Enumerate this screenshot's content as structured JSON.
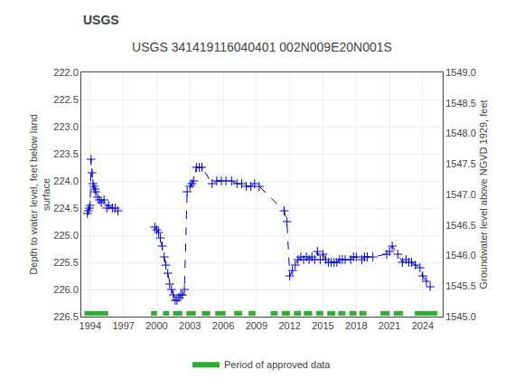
{
  "chart_data": {
    "type": "line",
    "title": "USGS 341419116040401 002N009E20N001S",
    "annotations": [
      {
        "text": "USGS"
      }
    ],
    "ylabel": "Depth to water level, feet below land\nsurface",
    "y2label": "Groundwater level above NGVD 1929, feet",
    "xlim": [
      1993.2,
      2025.8
    ],
    "xticks": [
      1994,
      1997,
      2000,
      2003,
      2006,
      2009,
      2012,
      2015,
      2018,
      2021,
      2024
    ],
    "ylim": [
      226.5,
      222.0
    ],
    "yticks": [
      {
        "value": 222.0,
        "label": "222.0"
      },
      222.5,
      {
        "value": 223.0,
        "label": "223.0"
      },
      223.5,
      {
        "value": 224.0,
        "label": "224.0"
      },
      224.5,
      {
        "value": 225.0,
        "label": "225.0"
      },
      225.5,
      {
        "value": 226.0,
        "label": "226.0"
      },
      226.5
    ],
    "y2lim": [
      1545.0,
      1549.0
    ],
    "y2ticks": [
      {
        "value": 1545.0,
        "label": "1545.0"
      },
      1545.5,
      {
        "value": 1546.0,
        "label": "1546.0"
      },
      1546.5,
      {
        "value": 1547.0,
        "label": "1547.0"
      },
      1547.5,
      {
        "value": 1548.0,
        "label": "1548.0"
      },
      1548.5,
      {
        "value": 1549.0,
        "label": "1549.0"
      }
    ],
    "grid": true,
    "legend": "bottom",
    "x": [
      1993.75,
      1993.83,
      1993.92,
      1994.0,
      1994.08,
      1994.17,
      1994.25,
      1994.33,
      1994.42,
      1994.5,
      1994.67,
      1994.83,
      1995.0,
      1995.25,
      1995.5,
      1995.67,
      1996.0,
      1996.25,
      1996.5,
      null,
      1999.83,
      2000.0,
      2000.17,
      2000.33,
      2000.5,
      2000.67,
      2000.83,
      2001.0,
      2001.17,
      2001.33,
      2001.5,
      2001.67,
      2001.83,
      2002.0,
      2002.17,
      2002.33,
      2002.5,
      2002.75,
      2003.0,
      2003.17,
      2003.33,
      2003.58,
      2003.83,
      2004.08,
      2005.0,
      2005.42,
      2005.83,
      2006.25,
      2006.75,
      2007.25,
      2007.67,
      2008.08,
      2008.5,
      2008.83,
      2009.25,
      2011.5,
      2011.75,
      2012.0,
      2012.25,
      2012.5,
      2012.75,
      2013.0,
      2013.25,
      2013.5,
      2013.75,
      2014.0,
      2014.25,
      2014.5,
      2014.75,
      2015.0,
      2015.25,
      2015.5,
      2015.75,
      2016.0,
      2016.25,
      2016.5,
      2016.75,
      2017.0,
      2017.5,
      2017.75,
      2018.0,
      2018.5,
      2018.75,
      2019.0,
      2019.5,
      2020.75,
      2021.0,
      2021.25,
      2021.75,
      2022.17,
      2022.5,
      2022.75,
      2023.0,
      2023.33,
      2023.75,
      2024.0,
      2024.33,
      2024.67
    ],
    "series": [
      {
        "color": "#0000cc",
        "marker": "+",
        "line_style": "--",
        "values": [
          224.6,
          224.55,
          224.5,
          224.45,
          223.6,
          223.85,
          224.05,
          224.1,
          224.15,
          224.2,
          224.3,
          224.35,
          224.4,
          224.35,
          224.5,
          224.45,
          224.5,
          224.5,
          224.55,
          null,
          224.85,
          224.9,
          224.95,
          225.05,
          225.2,
          225.4,
          225.55,
          225.7,
          225.9,
          226.0,
          226.1,
          226.2,
          226.2,
          226.15,
          226.1,
          226.1,
          226.0,
          224.2,
          224.1,
          224.05,
          224.0,
          223.75,
          223.75,
          223.75,
          224.05,
          224.0,
          224.0,
          224.0,
          224.0,
          224.05,
          224.05,
          224.1,
          224.1,
          224.05,
          224.1,
          224.55,
          224.75,
          225.75,
          225.65,
          225.55,
          225.45,
          225.4,
          225.45,
          225.4,
          225.45,
          225.4,
          225.45,
          225.3,
          225.45,
          225.35,
          225.45,
          225.5,
          225.5,
          225.5,
          225.5,
          225.45,
          225.45,
          225.45,
          225.45,
          225.4,
          225.4,
          225.45,
          225.4,
          225.4,
          225.4,
          225.35,
          225.3,
          225.2,
          225.35,
          225.5,
          225.45,
          225.5,
          225.5,
          225.55,
          225.6,
          225.75,
          225.85,
          225.95
        ]
      },
      {
        "name": "Period of approved data",
        "type": "periods",
        "color": "#33aa33",
        "y_center": 226.44,
        "half_height": 0.04,
        "periods": [
          [
            1993.5,
            1995.6
          ],
          [
            1999.5,
            2000.0
          ],
          [
            2000.6,
            2001.1
          ],
          [
            2001.5,
            2002.3
          ],
          [
            2002.7,
            2003.5
          ],
          [
            2004.1,
            2004.8
          ],
          [
            2005.3,
            2006.2
          ],
          [
            2007.0,
            2007.7
          ],
          [
            2008.3,
            2008.9
          ],
          [
            2010.3,
            2010.9
          ],
          [
            2011.3,
            2012.0
          ],
          [
            2012.4,
            2013.0
          ],
          [
            2013.3,
            2014.0
          ],
          [
            2014.4,
            2015.0
          ],
          [
            2015.4,
            2016.1
          ],
          [
            2016.4,
            2017.0
          ],
          [
            2017.4,
            2018.0
          ],
          [
            2018.3,
            2018.9
          ],
          [
            2020.2,
            2021.0
          ],
          [
            2021.4,
            2022.2
          ],
          [
            2023.3,
            2025.3
          ]
        ]
      }
    ]
  }
}
